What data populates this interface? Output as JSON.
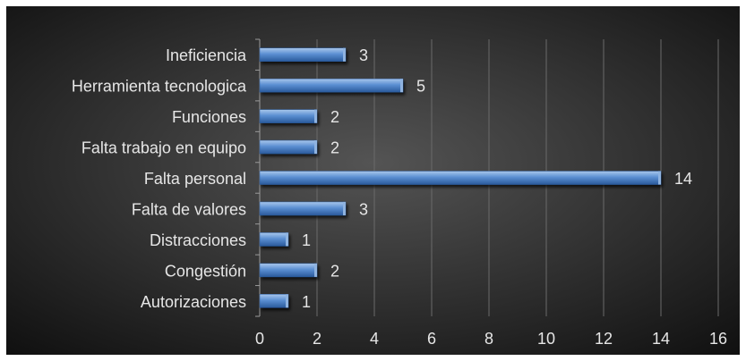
{
  "chart_data": {
    "type": "bar",
    "orientation": "horizontal",
    "title": "",
    "xlabel": "",
    "ylabel": "",
    "categories": [
      "Ineficiencia",
      "Herramienta tecnologica",
      "Funciones",
      "Falta trabajo en equipo",
      "Falta personal",
      "Falta de valores",
      "Distracciones",
      "Congestión",
      "Autorizaciones"
    ],
    "values": [
      3,
      5,
      2,
      2,
      14,
      3,
      1,
      2,
      1
    ],
    "xlim": [
      0,
      16
    ],
    "xticks": [
      0,
      2,
      4,
      6,
      8,
      10,
      12,
      14,
      16
    ],
    "grid": "vertical",
    "legend": "none",
    "data_labels": true
  },
  "colors": {
    "background_center": "#545454",
    "background_edge": "#0f0f0f",
    "bar_top": "#a9c7ec",
    "bar_mid": "#5b8fd2",
    "bar_bottom": "#2a5a9c",
    "bar_end": "#8fb3e0",
    "text": "#e6e6e6",
    "gridline": "#6a6a6a",
    "axis": "#9a9a9a"
  }
}
